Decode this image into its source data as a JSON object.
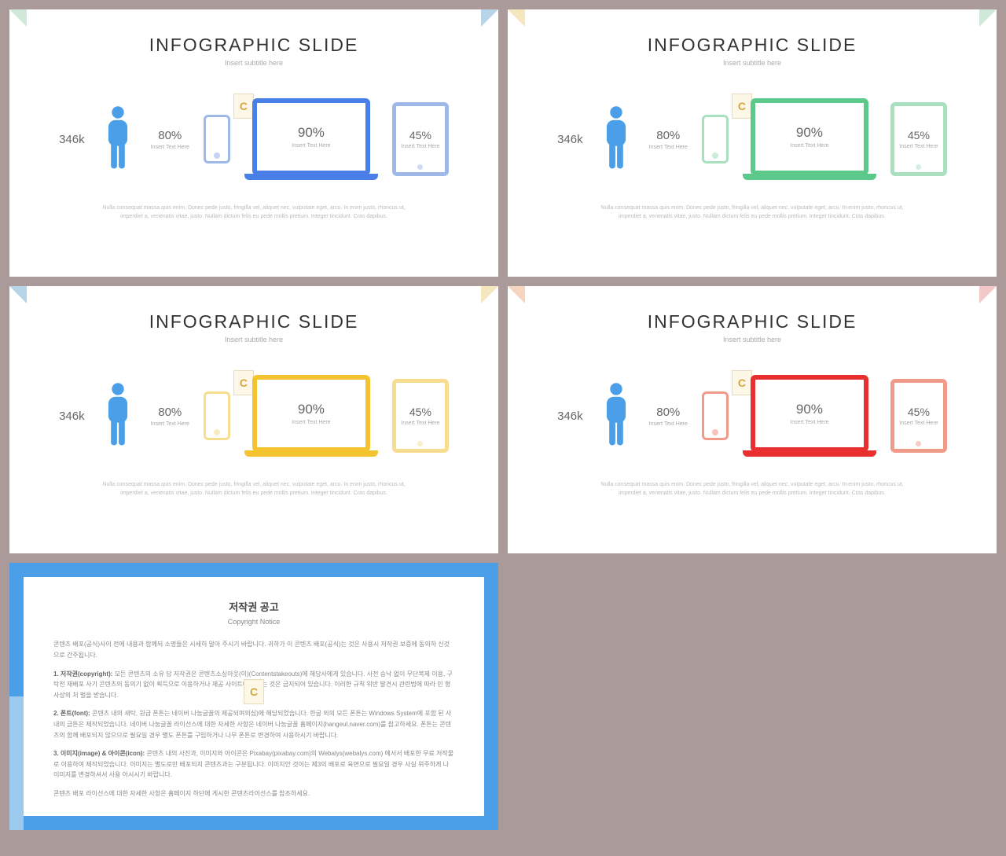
{
  "background_color": "#ab9a9a",
  "slides": {
    "title": "INFOGRAPHIC SLIDE",
    "subtitle": "Insert subtitle here",
    "person_stat": "346k",
    "phone_pct": "80%",
    "insert_text": "Insert Text Here",
    "laptop_pct": "90%",
    "tablet_pct": "45%",
    "footer_l1": "Nulla consequat massa quis enim. Donec pede justo, fringilla vel, aliquet nec, vulputate eget, arcu. In enim justo, rhoncus ut,",
    "footer_l2": "imperdiet a, venenatis vitae, justo. Nullam dictum felis eu pede mollis pretium. Integer tincidunt. Cras dapibus.",
    "watermark": "C",
    "person_color": "#4a9fe8",
    "variants": [
      {
        "primary": "#4a7fe8",
        "light": "#9fb8ea"
      },
      {
        "primary": "#5cc98a",
        "light": "#a8e0c0"
      },
      {
        "primary": "#f4c430",
        "light": "#f7dd90"
      },
      {
        "primary": "#e83030",
        "light": "#f09a8a"
      }
    ]
  },
  "copyright": {
    "title_kr": "저작권 공고",
    "title_en": "Copyright Notice",
    "intro": "콘텐츠 배포(공식)사이 전에 내용과 함께되 소명들은 시세히 알아 주시기 바랍니다. 귀하가 이 콘텐츠 배포(공식)는 것은 사용시 저작권 보증에 동의하 신것으로 간주됩니다.",
    "p1_label": "1. 저작권(copyright):",
    "p1": "모든 콘텐츠의 소유 담 저작권은 콘텐츠소싱아웃(이)(Contentstakeouts)에 해당사에게 있습니다. 사전 승낙 없이 무단복제 이용, 구탁전 재배포 사기 콘텐츠의 동의기 없이 획득으로 이용하거나 재공 사이트에 이용는 것은 금지되어 있습니다. 이러한 규칙 위반 발견시 관련법에 따라 민 형사상의 처 벌을 받습니다.",
    "p2_label": "2. 폰트(font):",
    "p2": "콘텐츠 내의 새탁, 원급 폰튼는 네이버 나눔글꼴의 제공되며의심)에 해당되었습니다. 한글 외의 모든 폰튼는 Windows System에 포함 된 사내의 금튼은 제작되었습니다. 네이버 나눔글꼴 라이선스에 대한 자세한 사항은 네이버 나눔글꼴 홈페이지(hangeul.naver.com)를 참고하세요. 폰튼는 콘텐츠의 함께 배포되지 않으므로 필요일 경우 별도 폰튼를 구입하거나 나무 폰튼로 변경하여 사용하시기 바랍니다.",
    "p3_label": "3. 이미지(image) & 아이콘(icon):",
    "p3": "콘텐츠 내의 사진과, 이미지와 아이콘은 Pixabay(pixabay.com)의 Webalys(webalys.com) 에서서 배포한 무료 저작물 로 이용하여 제작되었습니다. 이미지는 별도로만 배포되지 콘텐츠과는 구분됩니다. 이미지안 것이는 제3의 배포로 육면으로 필요일 경우 사실 위주하게 나 이미지를 변경하셔서 사용 아시시기 바랍니다.",
    "outro": "콘텐츠 배포 라이선스에 대한 자세한 사항은 홈페이지 하단에 게시한 콘텐츠라이선스를 참조하세요."
  }
}
